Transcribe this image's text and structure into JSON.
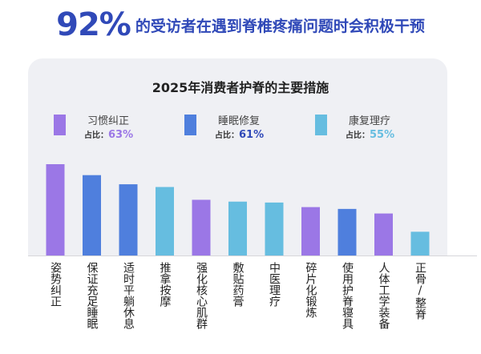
{
  "headline": {
    "percent": "92%",
    "text": "的受访者在遇到脊椎疼痛问题时会积极干预"
  },
  "chart_data": {
    "type": "bar",
    "title": "2025年消费者护脊的主要措施",
    "categories": [
      "姿势纠正",
      "保证充足睡眠",
      "适时平躺休息",
      "推拿按摩",
      "强化核心肌群",
      "敷贴药膏",
      "中医理疗",
      "碎片化锻炼",
      "使用护脊寝具",
      "人体工学装备",
      "正骨/整脊"
    ],
    "values": [
      100,
      88,
      78,
      75,
      61,
      59,
      58,
      53,
      51,
      46,
      26
    ],
    "value_note": "relative bar heights (no axis printed), tallest = 100",
    "bar_groups": [
      "习惯纠正",
      "睡眠修复",
      "睡眠修复",
      "康复理疗",
      "习惯纠正",
      "康复理疗",
      "康复理疗",
      "习惯纠正",
      "睡眠修复",
      "习惯纠正",
      "康复理疗"
    ],
    "legend": [
      {
        "name": "习惯纠正",
        "share_label": "占比：",
        "share": "63%",
        "color": "#9b77e6"
      },
      {
        "name": "睡眠修复",
        "share_label": "占比：",
        "share": "61%",
        "color": "#4f7fdd"
      },
      {
        "name": "康复理疗",
        "share_label": "占比：",
        "share": "55%",
        "color": "#66bde0"
      }
    ],
    "legend_position": "top",
    "grid": false
  }
}
